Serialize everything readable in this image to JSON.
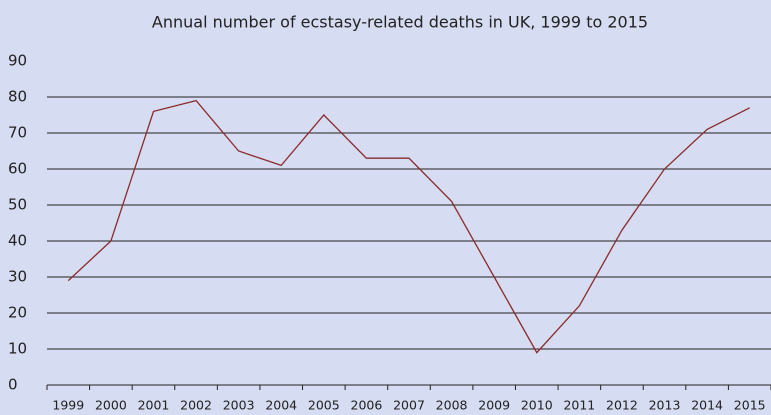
{
  "chart_data": {
    "type": "line",
    "title": "Annual number of ecstasy-related deaths in UK, 1999 to 2015",
    "categories": [
      "1999",
      "2000",
      "2001",
      "2002",
      "2003",
      "2004",
      "2005",
      "2006",
      "2007",
      "2008",
      "2009",
      "2010",
      "2011",
      "2012",
      "2013",
      "2014",
      "2015"
    ],
    "values": [
      29,
      40,
      76,
      79,
      65,
      61,
      75,
      63,
      63,
      51,
      30,
      9,
      22,
      43,
      60,
      71,
      77
    ],
    "color": "#8b2b2b",
    "ylim": [
      0,
      90
    ],
    "yticks": [
      0,
      10,
      20,
      30,
      40,
      50,
      60,
      70,
      80,
      90
    ],
    "grid": true
  }
}
